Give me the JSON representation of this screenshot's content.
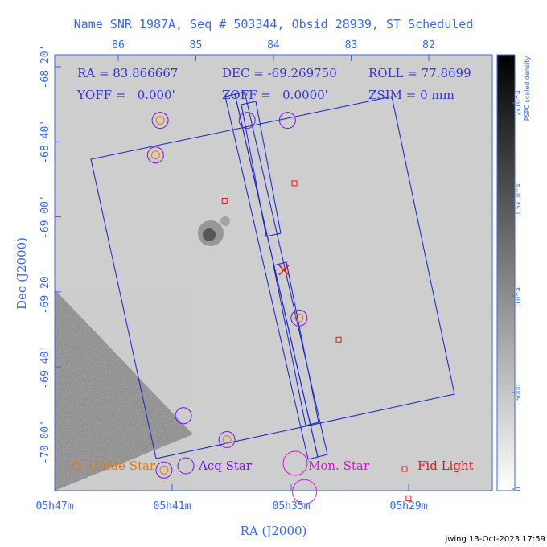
{
  "chart_data": {
    "type": "scatter",
    "title": "Name SNR 1987A, Seq # 503344, Obsid 28939, ST Scheduled",
    "xlabel": "RA (J2000)",
    "ylabel": "Dec (J2000)",
    "bottom_ticks": [
      "05h47m",
      "05h41m",
      "05h35m",
      "05h29m"
    ],
    "top_ticks": [
      "86",
      "85",
      "84",
      "83",
      "82"
    ],
    "left_ticks": [
      "-68 20'",
      "-68 40'",
      "-69 00'",
      "-69 20'",
      "-69 40'",
      "-70 00'"
    ],
    "readouts": {
      "ra": "RA = 83.866667",
      "dec": "DEC = -69.269750",
      "roll": "ROLL = 77.8699",
      "yoff": "YOFF =   0.000'",
      "zoff": "ZOFF =   0.0000'",
      "zsim": "ZSIM = 0 mm"
    },
    "colorbar": {
      "label": "PSPC scaled density",
      "ticks": [
        "0",
        "5000",
        "10^4",
        "1.5x10^4",
        "2x10^4"
      ],
      "tick_values": [
        0,
        5000,
        10000,
        15000,
        20000
      ],
      "range": [
        0,
        22500
      ]
    },
    "legend": {
      "guide": "Guide Star",
      "acq": "Acq Star",
      "mon": "Mon. Star",
      "fid": "Fid Light"
    },
    "pointing": {
      "ra_deg": 83.866667,
      "dec_deg": -69.26975
    },
    "guide_stars": [
      {
        "ra_deg": 85.46,
        "dec_deg": -68.58
      },
      {
        "ra_deg": 85.52,
        "dec_deg": -68.74
      },
      {
        "ra_deg": 83.67,
        "dec_deg": -69.49
      },
      {
        "ra_deg": 84.6,
        "dec_deg": -70.05
      },
      {
        "ra_deg": 85.41,
        "dec_deg": -70.19
      }
    ],
    "acq_stars": [
      {
        "ra_deg": 85.46,
        "dec_deg": -68.58
      },
      {
        "ra_deg": 85.52,
        "dec_deg": -68.74
      },
      {
        "ra_deg": 84.34,
        "dec_deg": -68.58
      },
      {
        "ra_deg": 83.82,
        "dec_deg": -68.58
      },
      {
        "ra_deg": 83.67,
        "dec_deg": -69.49
      },
      {
        "ra_deg": 85.16,
        "dec_deg": -69.94
      },
      {
        "ra_deg": 84.6,
        "dec_deg": -70.05
      },
      {
        "ra_deg": 85.41,
        "dec_deg": -70.19
      }
    ],
    "mon_stars": [
      {
        "ra_deg": 83.6,
        "dec_deg": -70.29
      }
    ],
    "fid_lights": [
      {
        "ra_deg": 84.63,
        "dec_deg": -68.95
      },
      {
        "ra_deg": 83.73,
        "dec_deg": -68.87
      },
      {
        "ra_deg": 83.16,
        "dec_deg": -69.59
      },
      {
        "ra_deg": 82.26,
        "dec_deg": -70.32
      }
    ]
  }
}
